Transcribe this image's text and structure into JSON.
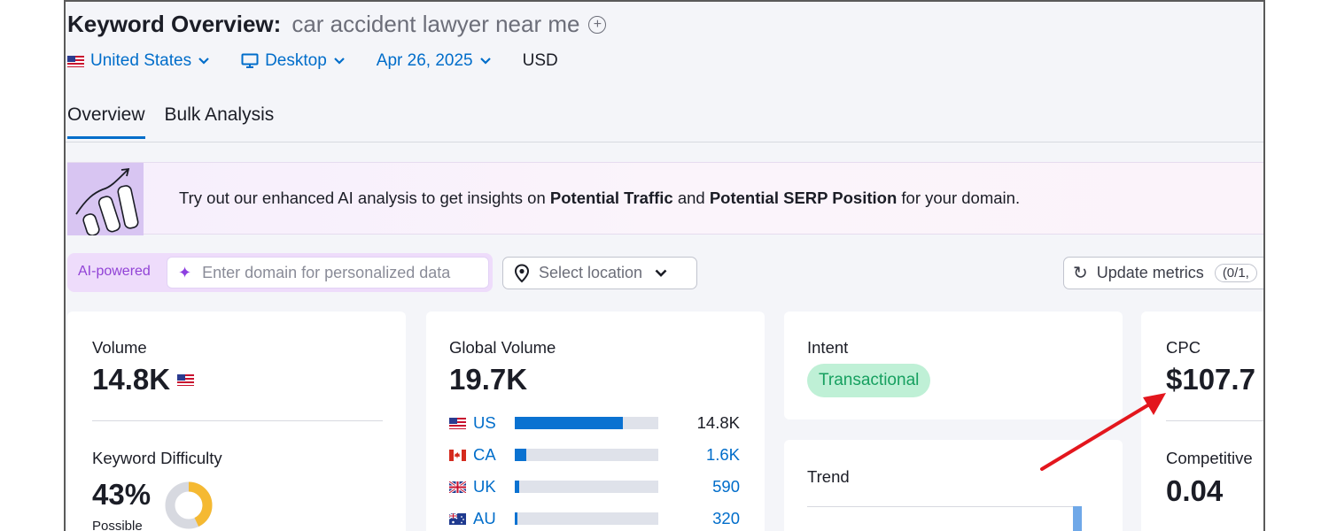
{
  "header": {
    "title": "Keyword Overview:",
    "keyword": "car accident lawyer near me",
    "add_icon": "plus-circle-icon"
  },
  "filters": {
    "country": "United States",
    "device": "Desktop",
    "date": "Apr 26, 2025",
    "currency": "USD"
  },
  "tabs": [
    {
      "label": "Overview",
      "active": true
    },
    {
      "label": "Bulk Analysis",
      "active": false
    }
  ],
  "banner": {
    "text_before": "Try out our enhanced AI analysis to get insights on ",
    "bold1": "Potential Traffic",
    "text_mid": " and ",
    "bold2": "Potential SERP Position",
    "text_after": " for your domain."
  },
  "ai": {
    "label": "AI-powered",
    "placeholder": "Enter domain for personalized data"
  },
  "location": {
    "placeholder": "Select location"
  },
  "update": {
    "label": "Update metrics",
    "quota": "(0/1,"
  },
  "volume": {
    "label": "Volume",
    "value": "14.8K"
  },
  "kd": {
    "label": "Keyword Difficulty",
    "value": "43%",
    "sub": "Possible",
    "percent": 43
  },
  "global_volume": {
    "label": "Global Volume",
    "value": "19.7K",
    "rows": [
      {
        "country": "US",
        "value": "14.8K",
        "fraction": 0.75
      },
      {
        "country": "CA",
        "value": "1.6K",
        "fraction": 0.08
      },
      {
        "country": "UK",
        "value": "590",
        "fraction": 0.03
      },
      {
        "country": "AU",
        "value": "320",
        "fraction": 0.02
      }
    ]
  },
  "intent": {
    "label": "Intent",
    "value": "Transactional"
  },
  "trend": {
    "label": "Trend"
  },
  "cpc": {
    "label": "CPC",
    "value": "$107.7"
  },
  "competitive": {
    "label": "Competitive",
    "value": "0.04"
  },
  "colors": {
    "accent": "#006dca",
    "arrow": "#e3161d",
    "intent_bg": "#bff0d6",
    "intent_text": "#17a060",
    "kd_ring": "#f5b932"
  }
}
